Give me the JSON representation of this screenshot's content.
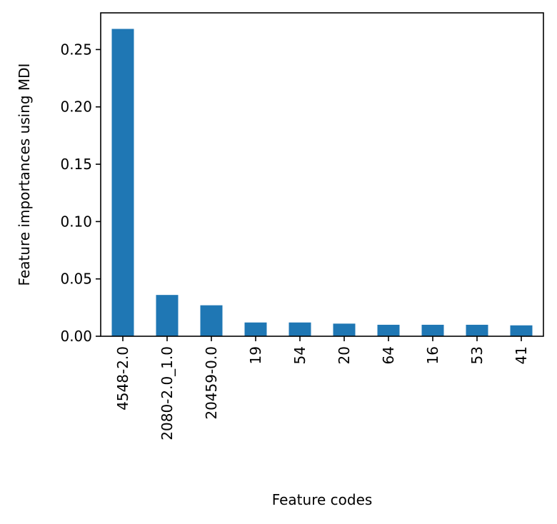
{
  "chart_data": {
    "type": "bar",
    "title": "",
    "xlabel": "Feature codes",
    "ylabel": "Feature importances using MDI",
    "categories": [
      "4548-2.0",
      "2080-2.0_1.0",
      "20459-0.0",
      "19",
      "54",
      "20",
      "64",
      "16",
      "53",
      "41"
    ],
    "values": [
      0.268,
      0.036,
      0.027,
      0.012,
      0.012,
      0.011,
      0.01,
      0.01,
      0.01,
      0.0095
    ],
    "ylim": [
      0,
      0.282
    ],
    "yticks": [
      0.0,
      0.05,
      0.1,
      0.15,
      0.2,
      0.25
    ],
    "ytick_labels": [
      "0.00",
      "0.05",
      "0.10",
      "0.15",
      "0.20",
      "0.25"
    ],
    "grid": false,
    "legend": "none",
    "bar_color": "#1f77b4"
  }
}
